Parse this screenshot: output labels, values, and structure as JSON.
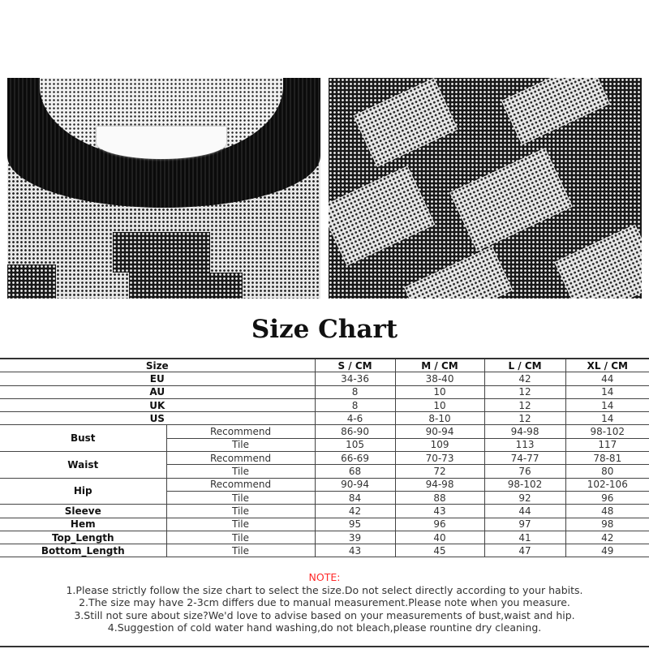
{
  "title": "Size Chart",
  "table": {
    "headers": [
      "Size",
      "S / CM",
      "M / CM",
      "L / CM",
      "XL / CM"
    ],
    "simple_rows": [
      {
        "label": "EU",
        "values": [
          "34-36",
          "38-40",
          "42",
          "44"
        ]
      },
      {
        "label": "AU",
        "values": [
          "8",
          "10",
          "12",
          "14"
        ]
      },
      {
        "label": "UK",
        "values": [
          "8",
          "10",
          "12",
          "14"
        ]
      },
      {
        "label": "US",
        "values": [
          "4-6",
          "8-10",
          "12",
          "14"
        ]
      }
    ],
    "group_rows": [
      {
        "label": "Bust",
        "sub": [
          {
            "label": "Recommend",
            "values": [
              "86-90",
              "90-94",
              "94-98",
              "98-102"
            ]
          },
          {
            "label": "Tile",
            "values": [
              "105",
              "109",
              "113",
              "117"
            ]
          }
        ]
      },
      {
        "label": "Waist",
        "sub": [
          {
            "label": "Recommend",
            "values": [
              "66-69",
              "70-73",
              "74-77",
              "78-81"
            ]
          },
          {
            "label": "Tile",
            "values": [
              "68",
              "72",
              "76",
              "80"
            ]
          }
        ]
      },
      {
        "label": "Hip",
        "sub": [
          {
            "label": "Recommend",
            "values": [
              "90-94",
              "94-98",
              "98-102",
              "102-106"
            ]
          },
          {
            "label": "Tile",
            "values": [
              "84",
              "88",
              "92",
              "96"
            ]
          }
        ]
      }
    ],
    "single_rows": [
      {
        "label": "Sleeve",
        "sub": "Tile",
        "values": [
          "42",
          "43",
          "44",
          "48"
        ]
      },
      {
        "label": "Hem",
        "sub": "Tile",
        "values": [
          "95",
          "96",
          "97",
          "98"
        ]
      },
      {
        "label": "Top_Length",
        "sub": "Tile",
        "values": [
          "39",
          "40",
          "41",
          "42"
        ]
      },
      {
        "label": "Bottom_Length",
        "sub": "Tile",
        "values": [
          "43",
          "45",
          "47",
          "49"
        ]
      }
    ]
  },
  "notes": {
    "title": "NOTE:",
    "items": [
      "1.Please strictly follow the size chart to select the size.Do not select directly according to your habits.",
      "2.The size may have 2-3cm differs due to manual measurement.Please note when you measure.",
      "3.Still not sure about size?We'd love to advise based on your measurements of bust,waist and hip.",
      "4.Suggestion of cold water hand washing,do not bleach,please rountine dry cleaning."
    ],
    "title_color": "#ff2a2a"
  }
}
